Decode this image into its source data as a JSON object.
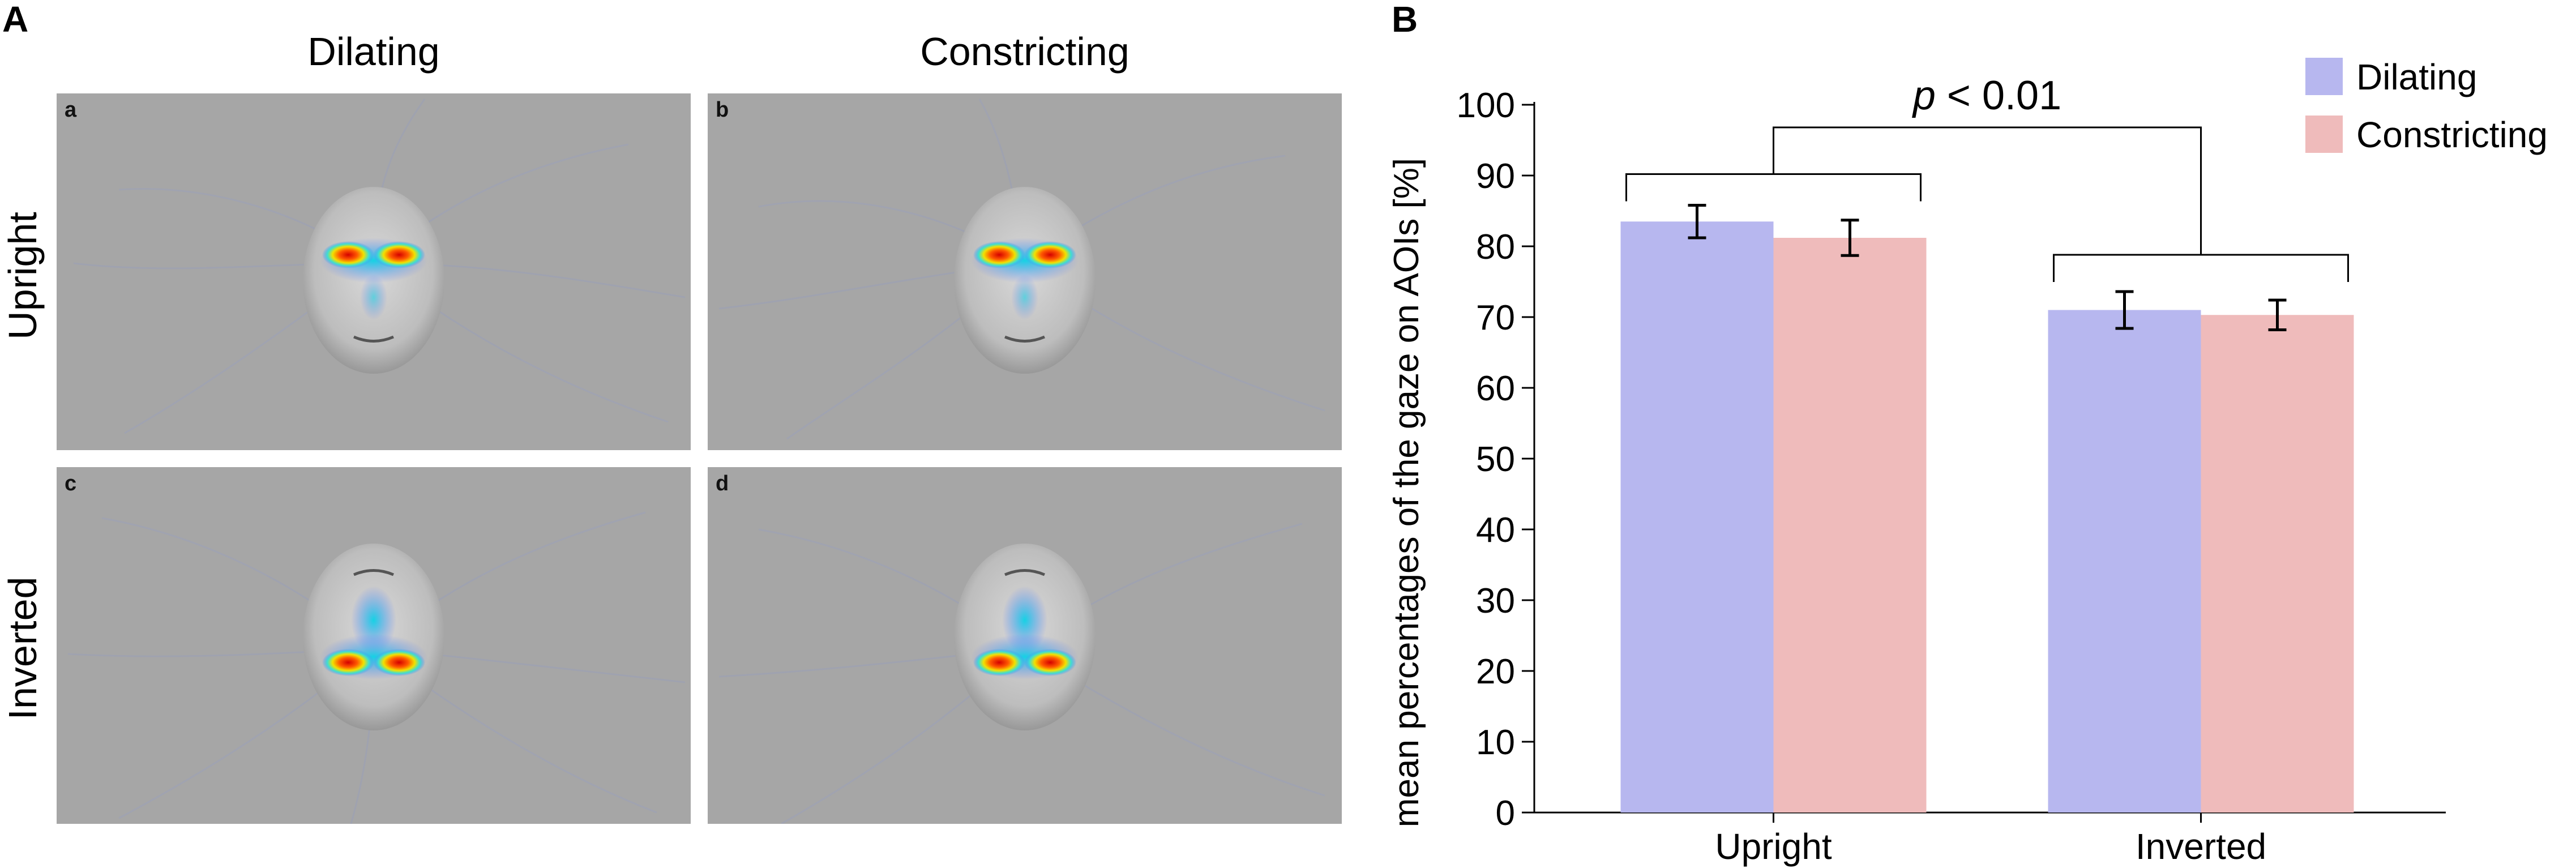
{
  "panel_a": {
    "letter": "A",
    "columns": [
      "Dilating",
      "Constricting"
    ],
    "rows": [
      "Upright",
      "Inverted"
    ],
    "tiles": [
      "a",
      "b",
      "c",
      "d"
    ]
  },
  "panel_b": {
    "letter": "B"
  },
  "colors": {
    "dilating": "#b7b7ef",
    "constricting": "#efbbbb",
    "tile_bg": "#a6a6a6"
  },
  "chart_data": {
    "type": "bar",
    "categories": [
      "Upright",
      "Inverted"
    ],
    "series": [
      {
        "name": "Dilating",
        "values": [
          83.5,
          71.0
        ],
        "errors": [
          2.3,
          2.6
        ]
      },
      {
        "name": "Constricting",
        "values": [
          81.2,
          70.3
        ],
        "errors": [
          2.5,
          2.1
        ]
      }
    ],
    "ylabel": "mean percentages of the gaze on AOIs [%]",
    "xlabel": "",
    "ylim": [
      0,
      100
    ],
    "yticks": [
      0,
      10,
      20,
      30,
      40,
      50,
      60,
      70,
      80,
      90,
      100
    ],
    "legend": [
      "Dilating",
      "Constricting"
    ],
    "legend_position": "top-right",
    "annotation": {
      "italic": "p",
      "rest": " < 0.01"
    },
    "grid": false
  }
}
